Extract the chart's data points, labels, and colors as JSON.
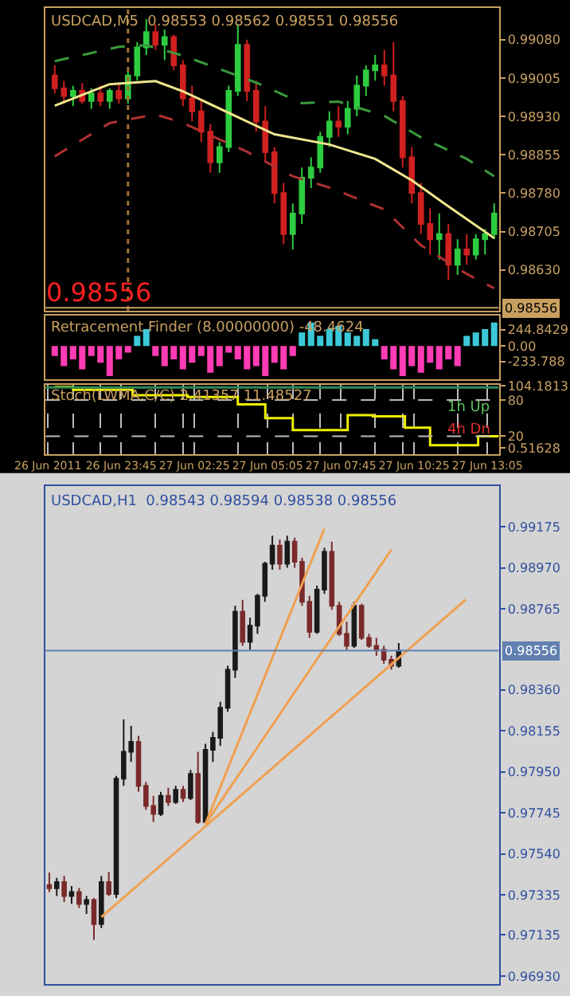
{
  "chart_data": [
    {
      "type": "candlestick",
      "title": "USDCAD,M5  0.98553 0.98562 0.98551 0.98556",
      "x": [
        "2011-06-26T21:20",
        "2011-06-26T21:40",
        "2011-06-26T22:00",
        "2011-06-26T22:20",
        "2011-06-26T22:40",
        "2011-06-26T23:00",
        "2011-06-26T23:20",
        "2011-06-26T23:40",
        "2011-06-27T00:00",
        "2011-06-27T00:20",
        "2011-06-27T00:40",
        "2011-06-27T01:00",
        "2011-06-27T01:20",
        "2011-06-27T01:40",
        "2011-06-27T02:00",
        "2011-06-27T02:20",
        "2011-06-27T02:40",
        "2011-06-27T03:00",
        "2011-06-27T03:20",
        "2011-06-27T03:40",
        "2011-06-27T04:00",
        "2011-06-27T04:20",
        "2011-06-27T04:40",
        "2011-06-27T05:00",
        "2011-06-27T05:20",
        "2011-06-27T05:40",
        "2011-06-27T06:00",
        "2011-06-27T06:20",
        "2011-06-27T06:40",
        "2011-06-27T07:00",
        "2011-06-27T07:20",
        "2011-06-27T07:40",
        "2011-06-27T08:00",
        "2011-06-27T08:20",
        "2011-06-27T08:40",
        "2011-06-27T09:00",
        "2011-06-27T09:20",
        "2011-06-27T09:40",
        "2011-06-27T10:00",
        "2011-06-27T10:20",
        "2011-06-27T10:40",
        "2011-06-27T11:00",
        "2011-06-27T11:20",
        "2011-06-27T11:40",
        "2011-06-27T12:00",
        "2011-06-27T12:20",
        "2011-06-27T12:40",
        "2011-06-27T13:00",
        "2011-06-27T13:20"
      ],
      "ohlc": [
        [
          0.9901,
          0.9903,
          0.98975,
          0.98985
        ],
        [
          0.98985,
          0.99,
          0.98955,
          0.9897
        ],
        [
          0.9897,
          0.9899,
          0.9895,
          0.9898
        ],
        [
          0.9898,
          0.98995,
          0.98955,
          0.9896
        ],
        [
          0.9896,
          0.98985,
          0.98945,
          0.98975
        ],
        [
          0.98975,
          0.9899,
          0.9895,
          0.9896
        ],
        [
          0.9896,
          0.98985,
          0.98945,
          0.9898
        ],
        [
          0.9898,
          0.98995,
          0.98955,
          0.98965
        ],
        [
          0.98965,
          0.9902,
          0.98955,
          0.9901
        ],
        [
          0.9901,
          0.99075,
          0.99,
          0.99065
        ],
        [
          0.99065,
          0.9912,
          0.9905,
          0.99095
        ],
        [
          0.99095,
          0.9911,
          0.9906,
          0.9907
        ],
        [
          0.9907,
          0.991,
          0.9904,
          0.99085
        ],
        [
          0.99085,
          0.9909,
          0.9902,
          0.9903
        ],
        [
          0.9903,
          0.9904,
          0.9895,
          0.98965
        ],
        [
          0.98965,
          0.9899,
          0.9892,
          0.9894
        ],
        [
          0.9894,
          0.9896,
          0.9888,
          0.989
        ],
        [
          0.989,
          0.98915,
          0.9882,
          0.9884
        ],
        [
          0.9884,
          0.9888,
          0.9882,
          0.9887
        ],
        [
          0.9887,
          0.9899,
          0.9886,
          0.9898
        ],
        [
          0.9898,
          0.9911,
          0.9897,
          0.9907
        ],
        [
          0.9907,
          0.9908,
          0.9896,
          0.9898
        ],
        [
          0.9898,
          0.99,
          0.989,
          0.9892
        ],
        [
          0.9892,
          0.9895,
          0.9884,
          0.9886
        ],
        [
          0.9886,
          0.9887,
          0.9876,
          0.9878
        ],
        [
          0.9878,
          0.988,
          0.9868,
          0.987
        ],
        [
          0.987,
          0.9876,
          0.9867,
          0.9874
        ],
        [
          0.9874,
          0.9883,
          0.9872,
          0.9881
        ],
        [
          0.9881,
          0.9885,
          0.9879,
          0.9883
        ],
        [
          0.9883,
          0.989,
          0.9882,
          0.9889
        ],
        [
          0.9889,
          0.9894,
          0.9887,
          0.9892
        ],
        [
          0.9892,
          0.9895,
          0.9889,
          0.9891
        ],
        [
          0.9891,
          0.9896,
          0.98895,
          0.98945
        ],
        [
          0.98945,
          0.9901,
          0.9893,
          0.9899
        ],
        [
          0.9899,
          0.9903,
          0.9897,
          0.9902
        ],
        [
          0.9902,
          0.9905,
          0.99,
          0.9903
        ],
        [
          0.9903,
          0.9906,
          0.9899,
          0.9901
        ],
        [
          0.9901,
          0.99075,
          0.9894,
          0.9896
        ],
        [
          0.9896,
          0.9897,
          0.9883,
          0.9885
        ],
        [
          0.9885,
          0.9887,
          0.9876,
          0.9878
        ],
        [
          0.9878,
          0.988,
          0.987,
          0.9872
        ],
        [
          0.9872,
          0.9875,
          0.9866,
          0.9869
        ],
        [
          0.9869,
          0.9874,
          0.9865,
          0.987
        ],
        [
          0.987,
          0.9872,
          0.9861,
          0.9864
        ],
        [
          0.9864,
          0.9869,
          0.9862,
          0.9867
        ],
        [
          0.9867,
          0.987,
          0.9864,
          0.9866
        ],
        [
          0.9866,
          0.987,
          0.9865,
          0.9869
        ],
        [
          0.9869,
          0.9871,
          0.9866,
          0.987
        ],
        [
          0.987,
          0.9876,
          0.9869,
          0.9874
        ]
      ],
      "colors": [
        "#d02020",
        "#d02020",
        "#2ecc40",
        "#d02020",
        "#2ecc40",
        "#d02020",
        "#2ecc40",
        "#d02020",
        "#2ecc40",
        "#2ecc40",
        "#2ecc40",
        "#d02020",
        "#2ecc40",
        "#d02020",
        "#d02020",
        "#d02020",
        "#d02020",
        "#d02020",
        "#2ecc40",
        "#2ecc40",
        "#2ecc40",
        "#d02020",
        "#d02020",
        "#d02020",
        "#d02020",
        "#d02020",
        "#2ecc40",
        "#2ecc40",
        "#2ecc40",
        "#2ecc40",
        "#2ecc40",
        "#d02020",
        "#2ecc40",
        "#2ecc40",
        "#2ecc40",
        "#2ecc40",
        "#d02020",
        "#d02020",
        "#d02020",
        "#d02020",
        "#d02020",
        "#d02020",
        "#2ecc40",
        "#d02020",
        "#2ecc40",
        "#d02020",
        "#2ecc40",
        "#2ecc40",
        "#2ecc40"
      ],
      "series": [
        {
          "type": "line",
          "color": "#f0e68c",
          "line_style": "solid",
          "x": [
            "2011-06-26T21:20",
            "2011-06-26T23:20",
            "2011-06-27T01:00",
            "2011-06-27T02:00",
            "2011-06-27T03:40",
            "2011-06-27T05:20",
            "2011-06-27T07:20",
            "2011-06-27T09:00",
            "2011-06-27T10:20",
            "2011-06-27T11:40",
            "2011-06-27T13:20"
          ],
          "values": [
            0.98951,
            0.98993,
            0.98999,
            0.98979,
            0.98937,
            0.98895,
            0.98875,
            0.98847,
            0.98805,
            0.98754,
            0.98692
          ]
        },
        {
          "type": "line",
          "color": "#3c9a3c",
          "line_style": "dashed",
          "x": [
            "2011-06-26T21:20",
            "2011-06-26T23:40",
            "2011-06-27T00:40",
            "2011-06-27T02:00",
            "2011-06-27T04:40",
            "2011-06-27T06:20",
            "2011-06-27T07:40",
            "2011-06-27T09:20",
            "2011-06-27T10:40",
            "2011-06-27T12:20",
            "2011-06-27T13:20"
          ],
          "values": [
            0.99038,
            0.99066,
            0.99069,
            0.99049,
            0.98996,
            0.98956,
            0.98959,
            0.98931,
            0.98889,
            0.98847,
            0.98813
          ]
        },
        {
          "type": "line",
          "color": "#b03030",
          "line_style": "dashed",
          "x": [
            "2011-06-26T21:20",
            "2011-06-26T23:20",
            "2011-06-27T01:00",
            "2011-06-27T02:00",
            "2011-06-27T04:20",
            "2011-06-27T06:00",
            "2011-06-27T07:20",
            "2011-06-27T09:20",
            "2011-06-27T10:40",
            "2011-06-27T12:20",
            "2011-06-27T13:20"
          ],
          "values": [
            0.98852,
            0.98917,
            0.98934,
            0.98917,
            0.98861,
            0.98813,
            0.98791,
            0.98748,
            0.98678,
            0.98622,
            0.98594
          ]
        }
      ],
      "xlim": [
        "2011-06-26T21:00",
        "2011-06-27T13:30"
      ],
      "ylim": [
        0.9855,
        0.99142
      ],
      "yticks": [
        {
          "value": 0.9908,
          "label": "0.99080"
        },
        {
          "value": 0.99005,
          "label": "0.99005"
        },
        {
          "value": 0.9893,
          "label": "0.98930"
        },
        {
          "value": 0.98855,
          "label": "0.98855"
        },
        {
          "value": 0.9878,
          "label": "0.98780"
        },
        {
          "value": 0.98705,
          "label": "0.98705"
        },
        {
          "value": 0.9863,
          "label": "0.98630"
        }
      ],
      "tick_labels": "y",
      "ref_lines": [
        {
          "axis": "x",
          "value": "2011-06-27T00:00",
          "color": "#a07030",
          "line_style": "dotted"
        },
        {
          "axis": "y",
          "value": 0.98556,
          "label": "0.98556",
          "color": "#c8a060"
        }
      ],
      "annotations": [
        "0.98556"
      ]
    },
    {
      "type": "bar",
      "title": "Retracement Finder (8.00000000) -48.4624",
      "x": [
        "2011-06-26T21:20",
        "2011-06-26T21:40",
        "2011-06-26T22:00",
        "2011-06-26T22:20",
        "2011-06-26T22:40",
        "2011-06-26T23:00",
        "2011-06-26T23:20",
        "2011-06-26T23:40",
        "2011-06-27T00:00",
        "2011-06-27T00:20",
        "2011-06-27T00:40",
        "2011-06-27T01:00",
        "2011-06-27T01:20",
        "2011-06-27T01:40",
        "2011-06-27T02:00",
        "2011-06-27T02:20",
        "2011-06-27T02:40",
        "2011-06-27T03:00",
        "2011-06-27T03:20",
        "2011-06-27T03:40",
        "2011-06-27T04:00",
        "2011-06-27T04:20",
        "2011-06-27T04:40",
        "2011-06-27T05:00",
        "2011-06-27T05:20",
        "2011-06-27T05:40",
        "2011-06-27T06:00",
        "2011-06-27T06:20",
        "2011-06-27T06:40",
        "2011-06-27T07:00",
        "2011-06-27T07:20",
        "2011-06-27T07:40",
        "2011-06-27T08:00",
        "2011-06-27T08:20",
        "2011-06-27T08:40",
        "2011-06-27T09:00",
        "2011-06-27T09:20",
        "2011-06-27T09:40",
        "2011-06-27T10:00",
        "2011-06-27T10:20",
        "2011-06-27T10:40",
        "2011-06-27T11:00",
        "2011-06-27T11:20",
        "2011-06-27T11:40",
        "2011-06-27T12:00",
        "2011-06-27T12:20",
        "2011-06-27T12:40",
        "2011-06-27T13:00",
        "2011-06-27T13:20"
      ],
      "values": [
        -150,
        -300,
        -200,
        -350,
        -150,
        -250,
        -450,
        -200,
        -100,
        150,
        250,
        -150,
        -300,
        -200,
        -350,
        -250,
        -150,
        -400,
        -300,
        -100,
        -200,
        -350,
        -300,
        -450,
        -250,
        -350,
        -150,
        200,
        350,
        150,
        250,
        300,
        200,
        150,
        250,
        100,
        -200,
        -350,
        -450,
        -300,
        -400,
        -250,
        -350,
        -200,
        -300,
        150,
        200,
        250,
        350
      ],
      "colors": [
        "#ff3cb4",
        "#ff3cb4",
        "#ff3cb4",
        "#ff3cb4",
        "#ff3cb4",
        "#ff3cb4",
        "#ff3cb4",
        "#ff3cb4",
        "#ff3cb4",
        "#3cc8d8",
        "#3cc8d8",
        "#ff3cb4",
        "#ff3cb4",
        "#ff3cb4",
        "#ff3cb4",
        "#ff3cb4",
        "#ff3cb4",
        "#ff3cb4",
        "#ff3cb4",
        "#ff3cb4",
        "#ff3cb4",
        "#ff3cb4",
        "#ff3cb4",
        "#ff3cb4",
        "#ff3cb4",
        "#ff3cb4",
        "#ff3cb4",
        "#3cc8d8",
        "#3cc8d8",
        "#3cc8d8",
        "#3cc8d8",
        "#3cc8d8",
        "#3cc8d8",
        "#3cc8d8",
        "#3cc8d8",
        "#3cc8d8",
        "#ff3cb4",
        "#ff3cb4",
        "#ff3cb4",
        "#ff3cb4",
        "#ff3cb4",
        "#ff3cb4",
        "#ff3cb4",
        "#ff3cb4",
        "#ff3cb4",
        "#3cc8d8",
        "#3cc8d8",
        "#3cc8d8",
        "#3cc8d8"
      ],
      "xlim": [
        "2011-06-26T21:00",
        "2011-06-27T13:30"
      ],
      "ylim": [
        -500,
        450
      ],
      "yticks": [
        {
          "value": 244.8429,
          "label": "244.8429"
        },
        {
          "value": 0,
          "label": "0.00"
        },
        {
          "value": -233.788,
          "label": "-233.788"
        }
      ],
      "tick_labels": "y"
    },
    {
      "type": "step",
      "title": "Stoch(LWMA,C/C) 2.41357 11.48527",
      "series": [
        {
          "color": "#f0f000",
          "x": [
            "2011-06-26T21:20",
            "2011-06-26T22:00",
            "2011-06-27T00:10",
            "2011-06-27T02:10",
            "2011-06-27T04:00",
            "2011-06-27T05:00",
            "2011-06-27T06:00",
            "2011-06-27T08:00",
            "2011-06-27T08:55",
            "2011-06-27T10:05",
            "2011-06-27T11:00",
            "2011-06-27T12:45",
            "2011-06-27T13:30"
          ],
          "values": [
            102,
            97,
            88,
            85,
            73,
            50,
            30,
            55,
            53,
            34,
            5,
            20,
            20
          ]
        },
        {
          "color": "#2e8b57",
          "x": [
            "2011-06-26T21:00",
            "2011-06-27T13:30"
          ],
          "values": [
            101,
            101
          ]
        }
      ],
      "xlim": [
        "2011-06-26T21:00",
        "2011-06-27T13:30"
      ],
      "xticks": [
        {
          "value": "2011-06-26T21:05",
          "label": "26 Jun 2011"
        },
        {
          "value": "2011-06-26T22:00",
          "label": null
        },
        {
          "value": "2011-06-26T23:00",
          "label": null
        },
        {
          "value": "2011-06-26T23:45",
          "label": "26 Jun 23:45"
        },
        {
          "value": "2011-06-27T01:00",
          "label": null
        },
        {
          "value": "2011-06-27T02:00",
          "label": null
        },
        {
          "value": "2011-06-27T02:25",
          "label": "27 Jun 02:25"
        },
        {
          "value": "2011-06-27T04:00",
          "label": null
        },
        {
          "value": "2011-06-27T05:05",
          "label": "27 Jun 05:05"
        },
        {
          "value": "2011-06-27T06:00",
          "label": null
        },
        {
          "value": "2011-06-27T07:00",
          "label": null
        },
        {
          "value": "2011-06-27T07:45",
          "label": "27 Jun 07:45"
        },
        {
          "value": "2011-06-27T09:00",
          "label": null
        },
        {
          "value": "2011-06-27T10:00",
          "label": null
        },
        {
          "value": "2011-06-27T10:25",
          "label": "27 Jun 10:25"
        },
        {
          "value": "2011-06-27T12:00",
          "label": null
        },
        {
          "value": "2011-06-27T13:05",
          "label": "27 Jun 13:05"
        }
      ],
      "ylim": [
        -10,
        106
      ],
      "yticks": [
        {
          "value": 104.1813,
          "label": "104.1813"
        },
        80,
        20,
        {
          "value": 0.51628,
          "label": "0.51628"
        }
      ],
      "grid": "x",
      "ref_lines": [
        {
          "axis": "y",
          "value": 80,
          "color": "#bbbbbb",
          "line_style": "dashed"
        },
        {
          "axis": "y",
          "value": 20,
          "color": "#bbbbbb",
          "line_style": "dashed"
        }
      ],
      "annotations": [
        "1h Up",
        "4h Dn"
      ]
    },
    {
      "type": "candlestick",
      "title": "USDCAD,H1  0.98543 0.98594 0.98538 0.98556",
      "categories": [
        null,
        null,
        null,
        null,
        null,
        null,
        null,
        null,
        null,
        null,
        null,
        null,
        null,
        null,
        null,
        null,
        null,
        null,
        null,
        null,
        null,
        null,
        null,
        null,
        null,
        null,
        null,
        null,
        null,
        null,
        null,
        null,
        null,
        null,
        null,
        null,
        null,
        null,
        null,
        null,
        null,
        null,
        null,
        null,
        null,
        null,
        null,
        null,
        null,
        null,
        null,
        null,
        null,
        null,
        null,
        null,
        null
      ],
      "ohlc": [
        [
          0.97385,
          0.97447,
          0.9735,
          0.97369
        ],
        [
          0.97369,
          0.9742,
          0.9733,
          0.974
        ],
        [
          0.974,
          0.9743,
          0.973,
          0.9733
        ],
        [
          0.9733,
          0.9738,
          0.9729,
          0.9735
        ],
        [
          0.9735,
          0.9737,
          0.9727,
          0.9729
        ],
        [
          0.9729,
          0.9733,
          0.9724,
          0.9731
        ],
        [
          0.9731,
          0.9732,
          0.97111,
          0.9719
        ],
        [
          0.9719,
          0.9743,
          0.9717,
          0.974
        ],
        [
          0.974,
          0.9745,
          0.9733,
          0.9734
        ],
        [
          0.9734,
          0.9793,
          0.9732,
          0.97916
        ],
        [
          0.97916,
          0.98213,
          0.9788,
          0.9805
        ],
        [
          0.9805,
          0.9818,
          0.98,
          0.981
        ],
        [
          0.981,
          0.9813,
          0.9785,
          0.9788
        ],
        [
          0.9788,
          0.979,
          0.9776,
          0.9778
        ],
        [
          0.9778,
          0.9783,
          0.977,
          0.9774
        ],
        [
          0.9774,
          0.9785,
          0.9773,
          0.9783
        ],
        [
          0.9783,
          0.9787,
          0.9778,
          0.978
        ],
        [
          0.978,
          0.9788,
          0.9779,
          0.9786
        ],
        [
          0.9786,
          0.9788,
          0.978,
          0.9782
        ],
        [
          0.9782,
          0.9796,
          0.9781,
          0.9794
        ],
        [
          0.9794,
          0.9805,
          0.9769,
          0.977
        ],
        [
          0.977,
          0.9809,
          0.9769,
          0.9806
        ],
        [
          0.9806,
          0.9815,
          0.98,
          0.9812
        ],
        [
          0.9812,
          0.983,
          0.9808,
          0.9827
        ],
        [
          0.9827,
          0.9848,
          0.9825,
          0.9846
        ],
        [
          0.9846,
          0.9878,
          0.9842,
          0.9875
        ],
        [
          0.9875,
          0.9881,
          0.9858,
          0.986
        ],
        [
          0.986,
          0.9872,
          0.9856,
          0.9868
        ],
        [
          0.9868,
          0.9884,
          0.9864,
          0.9883
        ],
        [
          0.9883,
          0.99,
          0.988,
          0.9899
        ],
        [
          0.9899,
          0.9913,
          0.9896,
          0.9908
        ],
        [
          0.9908,
          0.9911,
          0.9896,
          0.9899
        ],
        [
          0.9899,
          0.9913,
          0.9897,
          0.991
        ],
        [
          0.991,
          0.9912,
          0.9897,
          0.99
        ],
        [
          0.99,
          0.9902,
          0.9878,
          0.988
        ],
        [
          0.988,
          0.9883,
          0.9862,
          0.9865
        ],
        [
          0.9865,
          0.9888,
          0.9864,
          0.9886
        ],
        [
          0.9886,
          0.9907,
          0.9884,
          0.9905
        ],
        [
          0.9905,
          0.991,
          0.9876,
          0.9878
        ],
        [
          0.9878,
          0.988,
          0.9863,
          0.9864
        ],
        [
          0.9864,
          0.987,
          0.9856,
          0.9858
        ],
        [
          0.9858,
          0.988,
          0.9857,
          0.9878
        ],
        [
          0.9878,
          0.9879,
          0.9861,
          0.9862
        ],
        [
          0.9862,
          0.9864,
          0.9857,
          0.9858
        ],
        [
          0.9858,
          0.9862,
          0.9853,
          0.9856
        ],
        [
          0.9856,
          0.9858,
          0.9849,
          0.9851
        ],
        [
          0.9851,
          0.9853,
          0.9846,
          0.9848
        ],
        [
          0.9848,
          0.98594,
          0.9847,
          0.98556
        ],
        null,
        null,
        null,
        null,
        null,
        null,
        null,
        null,
        null
      ],
      "colors": [
        "#7a2a2a",
        "#1a1a1a",
        "#7a2a2a",
        "#1a1a1a",
        "#7a2a2a",
        "#1a1a1a",
        "#7a2a2a",
        "#1a1a1a",
        "#7a2a2a",
        "#1a1a1a",
        "#1a1a1a",
        "#1a1a1a",
        "#7a2a2a",
        "#7a2a2a",
        "#7a2a2a",
        "#1a1a1a",
        "#7a2a2a",
        "#1a1a1a",
        "#7a2a2a",
        "#1a1a1a",
        "#7a2a2a",
        "#1a1a1a",
        "#1a1a1a",
        "#1a1a1a",
        "#1a1a1a",
        "#1a1a1a",
        "#7a2a2a",
        "#1a1a1a",
        "#1a1a1a",
        "#1a1a1a",
        "#1a1a1a",
        "#7a2a2a",
        "#1a1a1a",
        "#7a2a2a",
        "#7a2a2a",
        "#7a2a2a",
        "#1a1a1a",
        "#1a1a1a",
        "#7a2a2a",
        "#7a2a2a",
        "#7a2a2a",
        "#1a1a1a",
        "#7a2a2a",
        "#7a2a2a",
        "#7a2a2a",
        "#7a2a2a",
        "#7a2a2a",
        "#1a1a1a",
        null,
        null,
        null,
        null,
        null,
        null,
        null,
        null,
        null
      ],
      "series": [
        {
          "type": "line",
          "color": "#f0a050",
          "values": [
            null,
            null,
            null,
            null,
            null,
            null,
            null,
            0.97225,
            null,
            null,
            null,
            null,
            null,
            null,
            null,
            null,
            null,
            null,
            null,
            null,
            null,
            null,
            null,
            null,
            null,
            null,
            null,
            null,
            null,
            null,
            null,
            null,
            null,
            null,
            null,
            null,
            null,
            null,
            null,
            null,
            null,
            null,
            null,
            null,
            null,
            null,
            null,
            null,
            null,
            null,
            null,
            null,
            null,
            null,
            null,
            null,
            0.9881
          ]
        },
        {
          "type": "line",
          "color": "#f0a050",
          "values": [
            null,
            null,
            null,
            null,
            null,
            null,
            null,
            null,
            null,
            null,
            null,
            null,
            null,
            null,
            null,
            null,
            null,
            null,
            null,
            null,
            null,
            0.9769,
            null,
            null,
            null,
            null,
            null,
            null,
            null,
            null,
            null,
            null,
            null,
            null,
            null,
            null,
            null,
            0.99165,
            null,
            null,
            null,
            null,
            null,
            null,
            null,
            null,
            null,
            null,
            null,
            null,
            null,
            null,
            null,
            null,
            null,
            null,
            null
          ]
        },
        {
          "type": "line",
          "color": "#f0a050",
          "values": [
            null,
            null,
            null,
            null,
            null,
            null,
            null,
            null,
            null,
            null,
            null,
            null,
            null,
            null,
            null,
            null,
            null,
            null,
            null,
            null,
            null,
            0.9769,
            null,
            null,
            null,
            null,
            null,
            null,
            null,
            null,
            null,
            null,
            null,
            null,
            null,
            null,
            null,
            null,
            null,
            null,
            null,
            null,
            null,
            null,
            null,
            null,
            0.9906,
            null,
            null,
            null,
            null,
            null,
            null,
            null,
            null,
            null,
            null
          ]
        }
      ],
      "ylim": [
        0.9689,
        0.99378
      ],
      "yticks": [
        {
          "value": 0.99175,
          "label": "0.99175"
        },
        {
          "value": 0.9897,
          "label": "0.98970"
        },
        {
          "value": 0.98765,
          "label": "0.98765"
        },
        {
          "value": 0.9836,
          "label": "0.98360"
        },
        {
          "value": 0.98155,
          "label": "0.98155"
        },
        {
          "value": 0.9795,
          "label": "0.97950"
        },
        {
          "value": 0.97745,
          "label": "0.97745"
        },
        {
          "value": 0.9754,
          "label": "0.97540"
        },
        {
          "value": 0.97335,
          "label": "0.97335"
        },
        {
          "value": 0.97135,
          "label": "0.97135"
        },
        {
          "value": 0.9693,
          "label": "0.96930"
        }
      ],
      "tick_labels": "y",
      "ref_lines": [
        {
          "axis": "y",
          "value": 0.98556,
          "label": "0.98556",
          "color": "#6080b0"
        }
      ]
    }
  ]
}
